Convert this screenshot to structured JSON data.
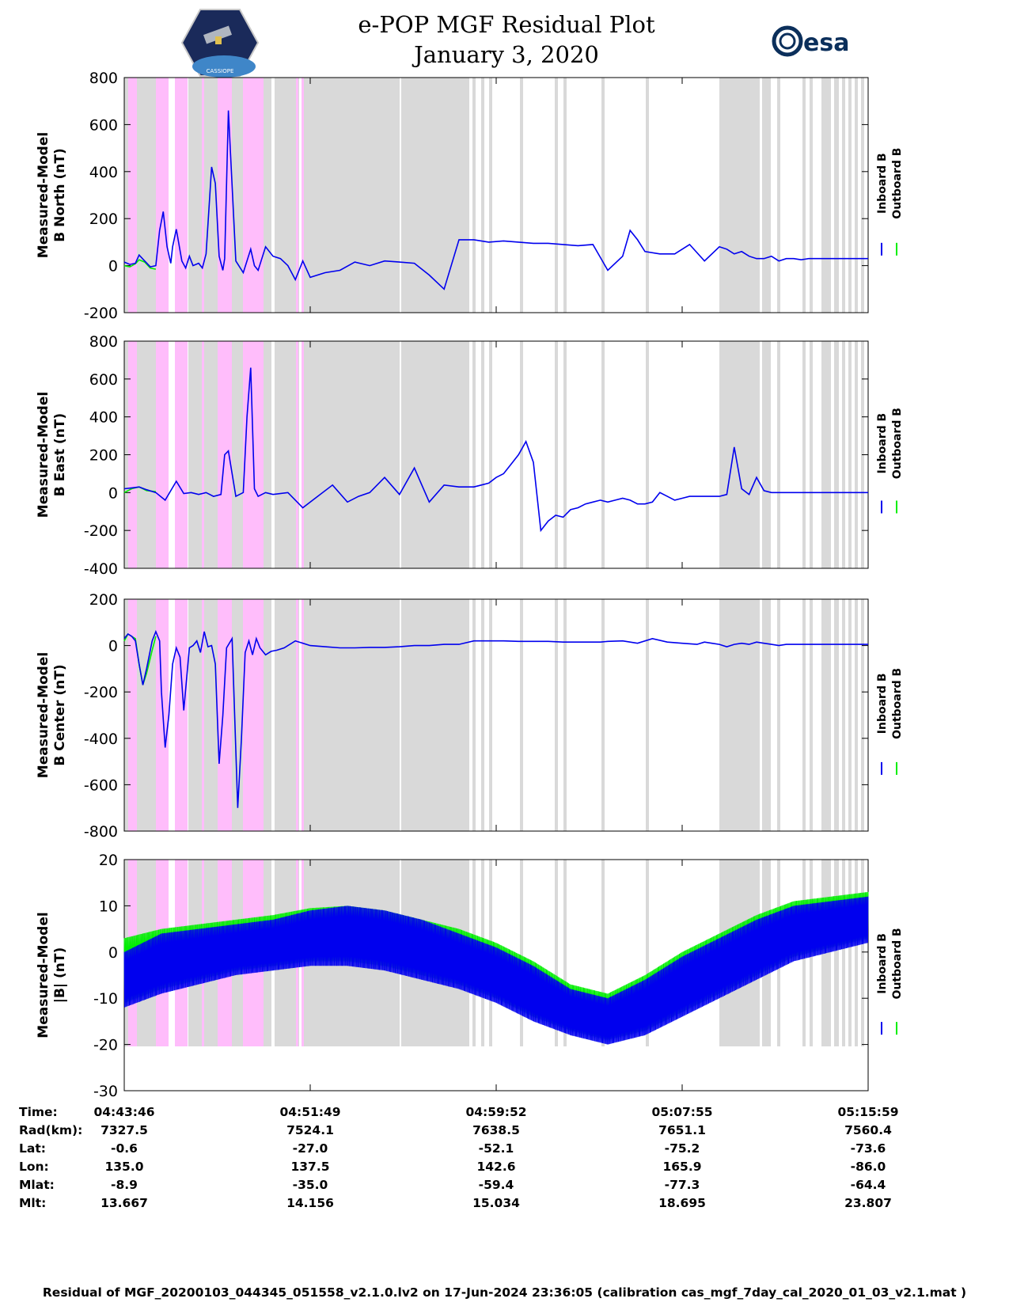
{
  "title": {
    "line1": "e-POP MGF Residual Plot",
    "line2": "January 3, 2020"
  },
  "logos": {
    "left_text": "CASSIOPE",
    "right_text": "esa"
  },
  "footer": "Residual of MGF_20200103_044345_051558_v2.1.0.lv2 on 17-Jun-2024 23:36:05 (calibration cas_mgf_7day_cal_2020_01_03_v2.1.mat )",
  "legend": {
    "inboard": "Inboard B",
    "outboard": "Outboard B"
  },
  "colors": {
    "inboard": "#0000ee",
    "outboard": "#00ee00",
    "gray_band": "#d9d9d9",
    "pink_band": "#ffbdfb"
  },
  "ephemeris": {
    "labels": [
      "Time:",
      "Rad(km):",
      "Lat:",
      "Lon:",
      "Mlat:",
      "Mlt:"
    ],
    "columns": [
      [
        "04:43:46",
        "7327.5",
        "-0.6",
        "135.0",
        "-8.9",
        "13.667"
      ],
      [
        "04:51:49",
        "7524.1",
        "-27.0",
        "137.5",
        "-35.0",
        "14.156"
      ],
      [
        "04:59:52",
        "7638.5",
        "-52.1",
        "142.6",
        "-59.4",
        "15.034"
      ],
      [
        "05:07:55",
        "7651.1",
        "-75.2",
        "165.9",
        "-77.3",
        "18.695"
      ],
      [
        "05:15:59",
        "7560.4",
        "-73.6",
        "-86.0",
        "-64.4",
        "23.807"
      ]
    ]
  },
  "chart_data": [
    {
      "type": "line",
      "title": "",
      "ylabel": [
        "Measured-Model",
        "B North (nT)"
      ],
      "ylim": [
        -200,
        800
      ],
      "yticks": [
        "800",
        "600",
        "400",
        "200",
        "0",
        "-200"
      ],
      "xlim": [
        0,
        2000
      ],
      "series": [
        {
          "name": "Outboard B",
          "x": [
            0,
            15,
            30,
            40,
            55,
            70,
            85
          ],
          "values": [
            0,
            -5,
            8,
            25,
            15,
            -10,
            -15
          ]
        },
        {
          "name": "Inboard B",
          "x": [
            0,
            15,
            30,
            40,
            55,
            70,
            85,
            95,
            105,
            115,
            125,
            130,
            140,
            155,
            165,
            175,
            185,
            200,
            210,
            220,
            235,
            245,
            255,
            265,
            270,
            280,
            300,
            320,
            340,
            350,
            360,
            380,
            400,
            420,
            440,
            460,
            480,
            500,
            540,
            580,
            620,
            660,
            700,
            740,
            780,
            820,
            860,
            900,
            940,
            980,
            1020,
            1060,
            1100,
            1140,
            1180,
            1220,
            1260,
            1300,
            1340,
            1360,
            1380,
            1400,
            1440,
            1480,
            1520,
            1560,
            1600,
            1620,
            1640,
            1660,
            1680,
            1700,
            1720,
            1740,
            1760,
            1780,
            1800,
            1820,
            1840,
            1860,
            1880,
            1900,
            1920,
            1940,
            1960,
            1980,
            2000
          ],
          "values": [
            15,
            5,
            10,
            45,
            20,
            -5,
            0,
            150,
            230,
            80,
            10,
            80,
            155,
            20,
            -10,
            40,
            0,
            10,
            -10,
            50,
            420,
            350,
            40,
            -20,
            30,
            660,
            20,
            -30,
            70,
            0,
            -20,
            80,
            40,
            30,
            0,
            -60,
            20,
            -50,
            -30,
            -20,
            15,
            0,
            20,
            15,
            10,
            -40,
            -100,
            110,
            110,
            100,
            105,
            100,
            95,
            95,
            90,
            85,
            90,
            -20,
            40,
            150,
            110,
            60,
            50,
            50,
            90,
            20,
            80,
            70,
            50,
            60,
            40,
            30,
            30,
            40,
            20,
            30,
            30,
            25,
            30,
            30,
            30,
            30,
            30,
            30,
            30,
            30,
            30
          ]
        }
      ]
    },
    {
      "type": "line",
      "title": "",
      "ylabel": [
        "Measured-Model",
        "B East (nT)"
      ],
      "ylim": [
        -400,
        800
      ],
      "yticks": [
        "800",
        "600",
        "400",
        "200",
        "0",
        "-200",
        "-400"
      ],
      "xlim": [
        0,
        2000
      ],
      "series": [
        {
          "name": "Outboard B",
          "x": [
            0,
            20,
            40,
            60,
            85
          ],
          "values": [
            0,
            20,
            30,
            10,
            5
          ]
        },
        {
          "name": "Inboard B",
          "x": [
            0,
            20,
            40,
            60,
            85,
            110,
            140,
            160,
            180,
            200,
            220,
            240,
            260,
            270,
            280,
            300,
            320,
            330,
            340,
            350,
            360,
            380,
            400,
            440,
            480,
            520,
            560,
            600,
            630,
            660,
            700,
            740,
            780,
            820,
            860,
            900,
            940,
            960,
            980,
            1000,
            1020,
            1040,
            1060,
            1080,
            1100,
            1120,
            1140,
            1160,
            1180,
            1200,
            1220,
            1240,
            1260,
            1280,
            1300,
            1320,
            1340,
            1360,
            1380,
            1400,
            1420,
            1440,
            1460,
            1480,
            1500,
            1520,
            1540,
            1560,
            1580,
            1600,
            1620,
            1640,
            1660,
            1680,
            1700,
            1720,
            1740,
            1760,
            1780,
            1800,
            1820,
            1840,
            1860,
            1880,
            1900,
            1920,
            1940,
            1960,
            1980,
            2000
          ],
          "values": [
            20,
            25,
            30,
            15,
            0,
            -40,
            60,
            -5,
            0,
            -10,
            0,
            -20,
            -10,
            200,
            220,
            -20,
            0,
            400,
            660,
            20,
            -20,
            0,
            -10,
            0,
            -80,
            -20,
            40,
            -50,
            -20,
            0,
            80,
            -10,
            130,
            -50,
            40,
            30,
            30,
            40,
            50,
            80,
            100,
            150,
            200,
            270,
            160,
            -200,
            -150,
            -120,
            -130,
            -90,
            -80,
            -60,
            -50,
            -40,
            -50,
            -40,
            -30,
            -40,
            -60,
            -60,
            -50,
            0,
            -20,
            -40,
            -30,
            -20,
            -20,
            -20,
            -20,
            -20,
            -10,
            240,
            20,
            -10,
            80,
            10,
            0,
            0,
            0,
            0,
            0,
            0,
            0,
            0,
            0,
            0,
            0,
            0,
            0,
            0
          ]
        }
      ]
    },
    {
      "type": "line",
      "title": "",
      "ylabel": [
        "Measured-Model",
        "B Center (nT)"
      ],
      "ylim": [
        -800,
        200
      ],
      "yticks": [
        "200",
        "0",
        "-200",
        "-400",
        "-600",
        "-800"
      ],
      "xlim": [
        0,
        2000
      ],
      "series": [
        {
          "name": "Outboard B",
          "x": [
            0,
            10,
            20,
            30,
            40,
            50,
            60,
            75,
            85
          ],
          "values": [
            20,
            50,
            40,
            30,
            -80,
            -170,
            -120,
            -20,
            40
          ]
        },
        {
          "name": "Inboard B",
          "x": [
            0,
            10,
            20,
            30,
            40,
            50,
            60,
            75,
            85,
            95,
            100,
            110,
            120,
            130,
            140,
            150,
            160,
            175,
            185,
            195,
            205,
            215,
            225,
            235,
            245,
            255,
            265,
            275,
            290,
            305,
            315,
            325,
            335,
            345,
            355,
            365,
            380,
            395,
            410,
            430,
            460,
            500,
            540,
            580,
            620,
            660,
            700,
            740,
            780,
            820,
            860,
            900,
            940,
            980,
            1020,
            1060,
            1100,
            1140,
            1180,
            1220,
            1240,
            1260,
            1280,
            1300,
            1340,
            1380,
            1420,
            1460,
            1500,
            1540,
            1560,
            1580,
            1600,
            1620,
            1640,
            1660,
            1680,
            1700,
            1720,
            1740,
            1760,
            1780,
            1800,
            1820,
            1840,
            1860,
            1880,
            1900,
            1920,
            1940,
            1960,
            1980,
            2000
          ],
          "values": [
            30,
            50,
            40,
            20,
            -80,
            -170,
            -100,
            20,
            60,
            20,
            -200,
            -440,
            -300,
            -80,
            -10,
            -50,
            -280,
            -10,
            0,
            20,
            -30,
            60,
            -5,
            0,
            -80,
            -510,
            -300,
            -10,
            30,
            -700,
            -400,
            -30,
            20,
            -40,
            30,
            -10,
            -40,
            -25,
            -20,
            -10,
            20,
            0,
            -5,
            -10,
            -10,
            -8,
            -8,
            -5,
            0,
            0,
            5,
            5,
            20,
            20,
            20,
            18,
            18,
            18,
            15,
            15,
            15,
            15,
            15,
            18,
            20,
            10,
            30,
            15,
            10,
            5,
            15,
            10,
            5,
            -5,
            5,
            10,
            5,
            15,
            10,
            5,
            0,
            5,
            5,
            5,
            5,
            5,
            5,
            5,
            5,
            5,
            5,
            5,
            5
          ]
        }
      ]
    },
    {
      "type": "line",
      "title": "",
      "ylabel": [
        "Measured-Model",
        "|B| (nT)"
      ],
      "ylim": [
        -30,
        20
      ],
      "yticks": [
        "20",
        "10",
        "0",
        "-10",
        "-20",
        "-30"
      ],
      "xlim": [
        0,
        2000
      ],
      "series": [
        {
          "name": "Outboard B (upper envelope)",
          "x": [
            0,
            100,
            200,
            300,
            400,
            500,
            600,
            700,
            800,
            900,
            1000,
            1100,
            1200,
            1300,
            1400,
            1500,
            1600,
            1700,
            1800,
            1900,
            2000
          ],
          "values": [
            3,
            5,
            6,
            7,
            8,
            9.5,
            10,
            9,
            7,
            5,
            2,
            -2,
            -7,
            -9,
            -5,
            0,
            4,
            8,
            11,
            12,
            13
          ]
        },
        {
          "name": "Inboard B (upper envelope)",
          "x": [
            0,
            100,
            200,
            300,
            400,
            500,
            600,
            700,
            800,
            900,
            1000,
            1100,
            1200,
            1300,
            1400,
            1500,
            1600,
            1700,
            1800,
            1900,
            2000
          ],
          "values": [
            0,
            4,
            5,
            6,
            7,
            9,
            10,
            9,
            7,
            4,
            1,
            -3,
            -8,
            -10,
            -6,
            -1,
            3,
            7,
            10,
            11,
            12
          ]
        },
        {
          "name": "Inboard B (lower envelope)",
          "x": [
            0,
            100,
            200,
            300,
            400,
            500,
            600,
            700,
            800,
            900,
            1000,
            1100,
            1200,
            1300,
            1400,
            1500,
            1600,
            1700,
            1800,
            1900,
            2000
          ],
          "values": [
            -12,
            -9,
            -7,
            -5,
            -4,
            -3,
            -3,
            -4,
            -6,
            -8,
            -11,
            -15,
            -18,
            -20,
            -18,
            -14,
            -10,
            -6,
            -2,
            0,
            2
          ]
        }
      ]
    }
  ]
}
